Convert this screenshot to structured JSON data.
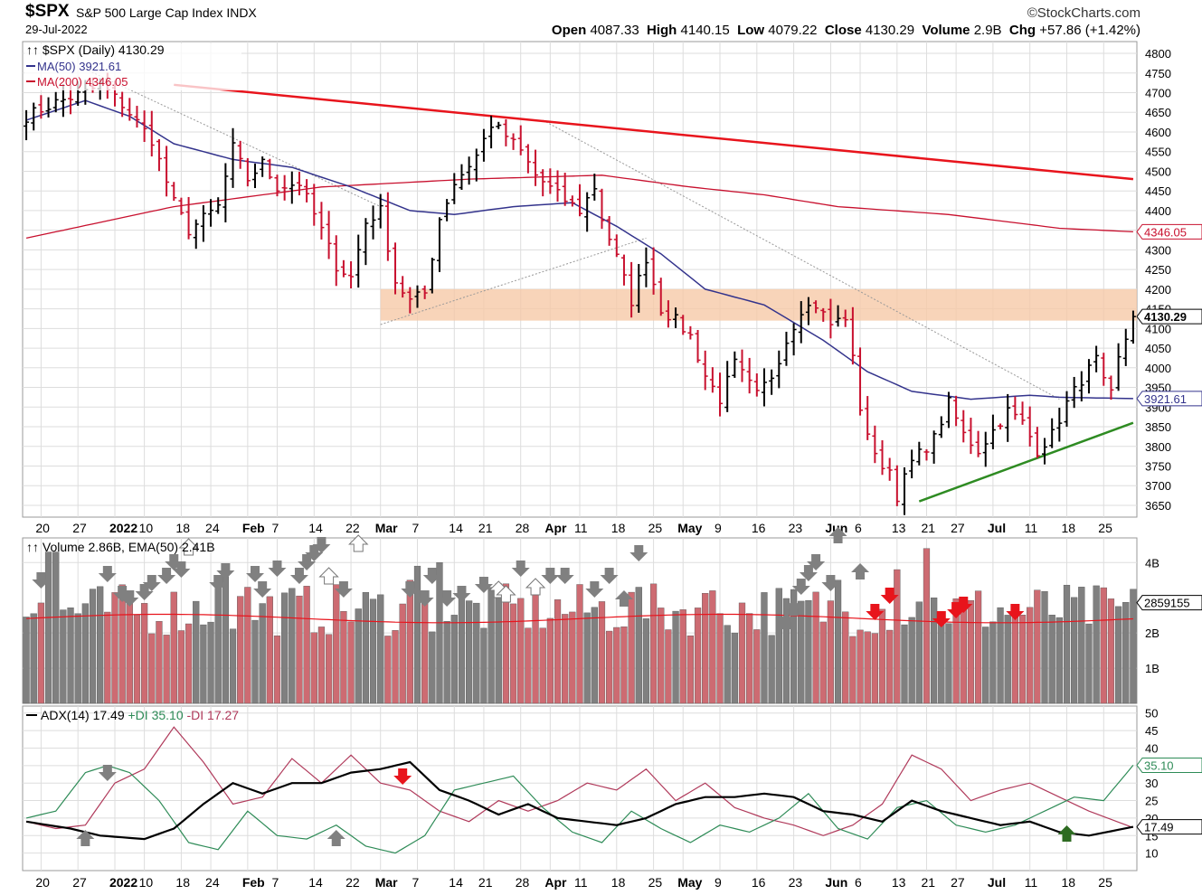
{
  "header": {
    "symbol": "$SPX",
    "name": "S&P 500 Large Cap Index",
    "exchange": "INDX",
    "date": "29-Jul-2022",
    "brand": "©StockCharts.com",
    "quote": {
      "open_label": "Open",
      "open": "4087.33",
      "high_label": "High",
      "high": "4140.15",
      "low_label": "Low",
      "low": "4079.22",
      "close_label": "Close",
      "close": "4130.29",
      "volume_label": "Volume",
      "volume": "2.9B",
      "chg_label": "Chg",
      "chg": "+57.86 (+1.42%)"
    }
  },
  "colors": {
    "up": "#000000",
    "down": "#c8102e",
    "ma50": "#33338c",
    "ma200": "#c8102e",
    "trend_red": "#e8141c",
    "trend_green": "#2e8b22",
    "zone": "#f6c9a8",
    "vol_up": "#808080",
    "vol_down": "#cd6b72",
    "ema_vol": "#e8141c",
    "adx": "#000000",
    "plus_di": "#2e8b57",
    "minus_di": "#b03a5b",
    "grid": "#dddddd"
  },
  "chart_data": [
    {
      "type": "ohlc",
      "title": "$SPX (Daily) 4130.29",
      "legend": [
        {
          "name": "$SPX (Daily)",
          "value": "4130.29"
        },
        {
          "name": "MA(50)",
          "value": "3921.61"
        },
        {
          "name": "MA(200)",
          "value": "4346.05"
        }
      ],
      "ylim": [
        3620,
        4830
      ],
      "y_ticks": [
        3650,
        3700,
        3750,
        3800,
        3850,
        3900,
        3950,
        4000,
        4050,
        4100,
        4150,
        4200,
        4250,
        4300,
        4350,
        4400,
        4450,
        4500,
        4550,
        4600,
        4650,
        4700,
        4750,
        4800
      ],
      "x_labels": [
        "20",
        "27",
        "2022",
        "10",
        "18",
        "24",
        "Feb",
        "7",
        "14",
        "22",
        "Mar",
        "7",
        "14",
        "21",
        "28",
        "Apr",
        "11",
        "18",
        "25",
        "May",
        "9",
        "16",
        "23",
        "Jun",
        "6",
        "13",
        "21",
        "27",
        "Jul",
        "11",
        "18",
        "25"
      ],
      "value_tags": [
        "4346.05",
        "4130.29",
        "3921.61"
      ],
      "close_anchors": [
        [
          0,
          4640
        ],
        [
          4,
          4675
        ],
        [
          8,
          4700
        ],
        [
          10,
          4720
        ],
        [
          13,
          4670
        ],
        [
          17,
          4580
        ],
        [
          20,
          4420
        ],
        [
          22,
          4350
        ],
        [
          24,
          4380
        ],
        [
          26,
          4410
        ],
        [
          28,
          4560
        ],
        [
          30,
          4480
        ],
        [
          32,
          4520
        ],
        [
          34,
          4460
        ],
        [
          37,
          4470
        ],
        [
          40,
          4350
        ],
        [
          42,
          4260
        ],
        [
          44,
          4230
        ],
        [
          46,
          4370
        ],
        [
          48,
          4400
        ],
        [
          50,
          4220
        ],
        [
          52,
          4170
        ],
        [
          54,
          4190
        ],
        [
          56,
          4380
        ],
        [
          58,
          4470
        ],
        [
          61,
          4540
        ],
        [
          63,
          4620
        ],
        [
          65,
          4590
        ],
        [
          67,
          4550
        ],
        [
          69,
          4490
        ],
        [
          72,
          4440
        ],
        [
          75,
          4400
        ],
        [
          77,
          4460
        ],
        [
          78,
          4380
        ],
        [
          80,
          4280
        ],
        [
          82,
          4170
        ],
        [
          84,
          4280
        ],
        [
          86,
          4150
        ],
        [
          88,
          4120
        ],
        [
          90,
          4080
        ],
        [
          92,
          3980
        ],
        [
          94,
          3920
        ],
        [
          96,
          4010
        ],
        [
          99,
          3930
        ],
        [
          101,
          3980
        ],
        [
          103,
          4070
        ],
        [
          105,
          4150
        ],
        [
          107,
          4160
        ],
        [
          109,
          4110
        ],
        [
          111,
          4130
        ],
        [
          112,
          4020
        ],
        [
          113,
          3900
        ],
        [
          115,
          3770
        ],
        [
          117,
          3740
        ],
        [
          118,
          3675
        ],
        [
          120,
          3760
        ],
        [
          123,
          3820
        ],
        [
          125,
          3910
        ],
        [
          127,
          3830
        ],
        [
          129,
          3790
        ],
        [
          131,
          3840
        ],
        [
          133,
          3890
        ],
        [
          135,
          3860
        ],
        [
          137,
          3790
        ],
        [
          139,
          3830
        ],
        [
          141,
          3910
        ],
        [
          143,
          3970
        ],
        [
          145,
          4020
        ],
        [
          146,
          3960
        ],
        [
          147,
          3930
        ],
        [
          148,
          4020
        ],
        [
          150,
          4130
        ]
      ],
      "ma50_anchors": [
        [
          0,
          4630
        ],
        [
          8,
          4680
        ],
        [
          14,
          4640
        ],
        [
          20,
          4570
        ],
        [
          28,
          4530
        ],
        [
          36,
          4510
        ],
        [
          44,
          4460
        ],
        [
          52,
          4400
        ],
        [
          58,
          4390
        ],
        [
          66,
          4410
        ],
        [
          74,
          4420
        ],
        [
          80,
          4360
        ],
        [
          86,
          4290
        ],
        [
          92,
          4200
        ],
        [
          100,
          4160
        ],
        [
          108,
          4070
        ],
        [
          114,
          3990
        ],
        [
          120,
          3940
        ],
        [
          128,
          3920
        ],
        [
          136,
          3930
        ],
        [
          140,
          3925
        ],
        [
          150,
          3921.61
        ]
      ],
      "ma200_anchors": [
        [
          0,
          4330
        ],
        [
          20,
          4410
        ],
        [
          40,
          4460
        ],
        [
          60,
          4480
        ],
        [
          78,
          4490
        ],
        [
          90,
          4460
        ],
        [
          100,
          4440
        ],
        [
          110,
          4410
        ],
        [
          125,
          4390
        ],
        [
          140,
          4355
        ],
        [
          150,
          4346.05
        ]
      ],
      "resistance_zone": [
        4120,
        4200
      ],
      "trend_lines": [
        {
          "color": "red",
          "from": [
            20,
            4720
          ],
          "to": [
            150,
            4480
          ]
        },
        {
          "color": "green",
          "from": [
            121,
            3660
          ],
          "to": [
            150,
            3860
          ]
        }
      ]
    },
    {
      "type": "bar",
      "title": "Volume 2.86B, EMA(50) 2.41B",
      "legend": [
        {
          "name": "Volume",
          "value": "2.86B"
        },
        {
          "name": "EMA(50)",
          "value": "2.41B"
        }
      ],
      "ylim": [
        0,
        4.7
      ],
      "y_ticks": [
        "1B",
        "2B",
        "4B"
      ],
      "value_tag": "2859155",
      "ema_value": 2.41,
      "high_volume_days": [
        [
          3,
          4.3
        ],
        [
          4,
          4.3
        ],
        [
          26,
          3.5
        ],
        [
          27,
          3.6
        ],
        [
          30,
          3.3
        ],
        [
          52,
          3.5
        ],
        [
          53,
          3.9
        ],
        [
          56,
          4.0
        ],
        [
          64,
          3.4
        ],
        [
          83,
          3.3
        ],
        [
          93,
          3.2
        ],
        [
          110,
          3.5
        ],
        [
          118,
          3.8
        ],
        [
          122,
          4.4
        ],
        [
          123,
          3.0
        ]
      ]
    },
    {
      "type": "line",
      "title": "ADX(14) 17.49 +DI 35.10 -DI 17.27",
      "series": [
        {
          "name": "ADX(14)",
          "value": "17.49",
          "anchors": [
            [
              0,
              19
            ],
            [
              6,
              17
            ],
            [
              10,
              15
            ],
            [
              16,
              14
            ],
            [
              20,
              17
            ],
            [
              24,
              24
            ],
            [
              28,
              30
            ],
            [
              32,
              27
            ],
            [
              36,
              30
            ],
            [
              40,
              30
            ],
            [
              44,
              33
            ],
            [
              48,
              34
            ],
            [
              52,
              36
            ],
            [
              56,
              28
            ],
            [
              60,
              25
            ],
            [
              64,
              21
            ],
            [
              68,
              24
            ],
            [
              72,
              20
            ],
            [
              76,
              19
            ],
            [
              80,
              18
            ],
            [
              84,
              20
            ],
            [
              88,
              24
            ],
            [
              92,
              26
            ],
            [
              96,
              26
            ],
            [
              100,
              27
            ],
            [
              104,
              26
            ],
            [
              108,
              22
            ],
            [
              112,
              21
            ],
            [
              116,
              19
            ],
            [
              120,
              25
            ],
            [
              124,
              22
            ],
            [
              128,
              20
            ],
            [
              132,
              18
            ],
            [
              136,
              19
            ],
            [
              140,
              16
            ],
            [
              144,
              15
            ],
            [
              150,
              17.49
            ]
          ]
        },
        {
          "name": "+DI",
          "value": "35.10",
          "anchors": [
            [
              0,
              20
            ],
            [
              4,
              22
            ],
            [
              8,
              33
            ],
            [
              11,
              35
            ],
            [
              14,
              33
            ],
            [
              18,
              25
            ],
            [
              22,
              13
            ],
            [
              26,
              11
            ],
            [
              30,
              22
            ],
            [
              34,
              15
            ],
            [
              38,
              14
            ],
            [
              42,
              18
            ],
            [
              46,
              12
            ],
            [
              50,
              10
            ],
            [
              54,
              15
            ],
            [
              58,
              28
            ],
            [
              62,
              30
            ],
            [
              66,
              32
            ],
            [
              70,
              23
            ],
            [
              74,
              16
            ],
            [
              78,
              13
            ],
            [
              82,
              22
            ],
            [
              86,
              17
            ],
            [
              90,
              13
            ],
            [
              94,
              18
            ],
            [
              98,
              16
            ],
            [
              102,
              20
            ],
            [
              106,
              27
            ],
            [
              110,
              17
            ],
            [
              114,
              14
            ],
            [
              118,
              23
            ],
            [
              122,
              25
            ],
            [
              126,
              18
            ],
            [
              130,
              16
            ],
            [
              134,
              18
            ],
            [
              138,
              22
            ],
            [
              142,
              26
            ],
            [
              146,
              25
            ],
            [
              150,
              35.1
            ]
          ]
        },
        {
          "name": "-DI",
          "value": "17.27",
          "anchors": [
            [
              0,
              19
            ],
            [
              4,
              17
            ],
            [
              8,
              18
            ],
            [
              12,
              30
            ],
            [
              16,
              34
            ],
            [
              20,
              46
            ],
            [
              24,
              36
            ],
            [
              28,
              24
            ],
            [
              32,
              26
            ],
            [
              36,
              37
            ],
            [
              40,
              30
            ],
            [
              44,
              38
            ],
            [
              48,
              30
            ],
            [
              52,
              28
            ],
            [
              56,
              22
            ],
            [
              60,
              19
            ],
            [
              64,
              25
            ],
            [
              68,
              22
            ],
            [
              72,
              25
            ],
            [
              76,
              30
            ],
            [
              80,
              28
            ],
            [
              84,
              34
            ],
            [
              88,
              25
            ],
            [
              92,
              30
            ],
            [
              96,
              23
            ],
            [
              100,
              20
            ],
            [
              104,
              18
            ],
            [
              108,
              15
            ],
            [
              112,
              18
            ],
            [
              116,
              24
            ],
            [
              120,
              38
            ],
            [
              124,
              34
            ],
            [
              128,
              25
            ],
            [
              132,
              28
            ],
            [
              136,
              30
            ],
            [
              140,
              26
            ],
            [
              144,
              22
            ],
            [
              150,
              17.27
            ]
          ]
        }
      ],
      "ylim": [
        5,
        52
      ],
      "y_ticks": [
        10,
        15,
        20,
        25,
        30,
        35,
        40,
        45,
        50
      ],
      "value_tags": [
        "35.10",
        "17.49"
      ]
    }
  ]
}
